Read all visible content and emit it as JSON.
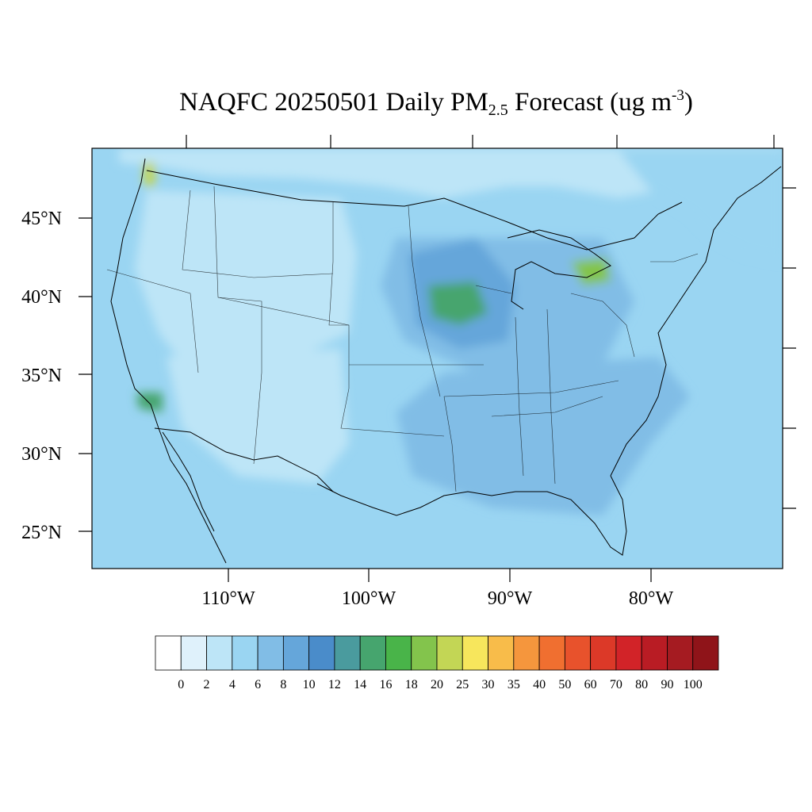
{
  "title": {
    "prefix": "NAQFC 20250501 Daily PM",
    "subscript": "2.5",
    "middle": " Forecast (ug m",
    "superscript": "-3",
    "suffix": ")"
  },
  "latitude_labels": [
    "45°N",
    "40°N",
    "35°N",
    "30°N",
    "25°N"
  ],
  "longitude_labels": [
    "110°W",
    "100°W",
    "90°W",
    "80°W"
  ],
  "colorbar": {
    "labels": [
      "0",
      "2",
      "4",
      "6",
      "8",
      "10",
      "12",
      "14",
      "16",
      "18",
      "20",
      "25",
      "30",
      "35",
      "40",
      "50",
      "60",
      "70",
      "80",
      "90",
      "100"
    ],
    "colors": [
      "#ffffff",
      "#dff1fb",
      "#bde5f7",
      "#9ad5f2",
      "#81bde6",
      "#65a6da",
      "#4a8cca",
      "#4a9b9e",
      "#46a56e",
      "#49b449",
      "#83c44c",
      "#c3d655",
      "#f7e65c",
      "#f8bc4a",
      "#f5963d",
      "#f06f30",
      "#e8522c",
      "#dc3928",
      "#d22328",
      "#b91c24",
      "#a51b21",
      "#8f1419"
    ]
  },
  "map": {
    "background": "#9ad5f2",
    "regions": [
      {
        "name": "canada-south",
        "color": "#bde5f7"
      },
      {
        "name": "atlantic-coast",
        "color": "#9ad5f2"
      },
      {
        "name": "great-basin",
        "color": "#bde5f7"
      },
      {
        "name": "southwest",
        "color": "#bde5f7"
      },
      {
        "name": "southeast",
        "color": "#81bde6"
      },
      {
        "name": "midwest",
        "color": "#81bde6"
      },
      {
        "name": "upper-midwest-hotspot",
        "color": "#65a6da"
      },
      {
        "name": "iowa-peak",
        "color": "#46a56e"
      },
      {
        "name": "michigan-peak",
        "color": "#83c44c"
      },
      {
        "name": "washington-peak",
        "color": "#c3d655"
      },
      {
        "name": "socal-peak",
        "color": "#46a56e"
      }
    ]
  }
}
